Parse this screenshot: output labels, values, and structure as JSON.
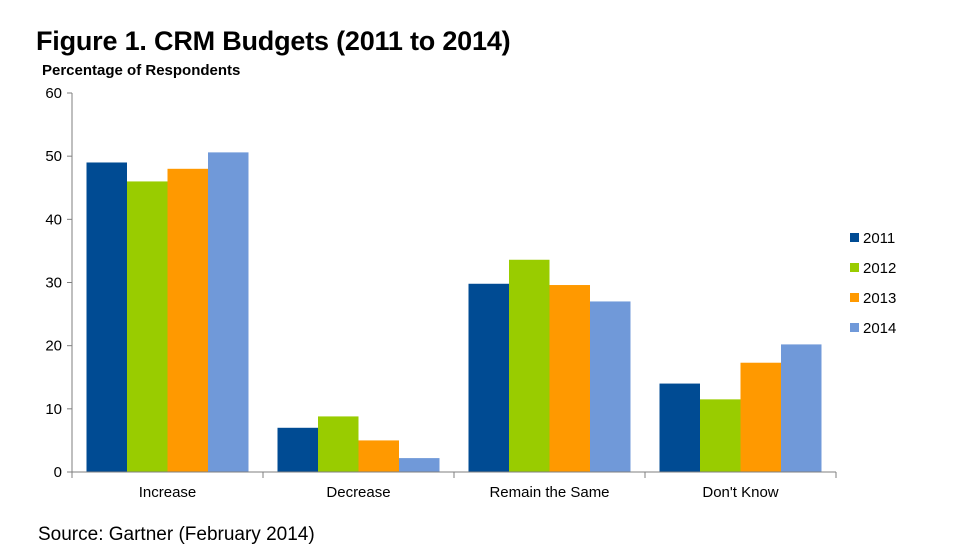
{
  "figure": {
    "title": "Figure 1. CRM Budgets (2011 to 2014)",
    "source": "Source: Gartner (February 2014)"
  },
  "chart_data": {
    "type": "bar",
    "title": "Figure 1. CRM Budgets (2011 to 2014)",
    "ylabel": "Percentage of Respondents",
    "xlabel": "",
    "ylim": [
      0,
      60
    ],
    "yticks": [
      0,
      10,
      20,
      30,
      40,
      50,
      60
    ],
    "grid": false,
    "legend_position": "right",
    "categories": [
      "Increase",
      "Decrease",
      "Remain the Same",
      "Don't Know"
    ],
    "series": [
      {
        "name": "2011",
        "color": "#004B93",
        "values": [
          49,
          7,
          29.8,
          14
        ]
      },
      {
        "name": "2012",
        "color": "#99CC00",
        "values": [
          46,
          8.8,
          33.6,
          11.5
        ]
      },
      {
        "name": "2013",
        "color": "#FF9900",
        "values": [
          48,
          5,
          29.6,
          17.3
        ]
      },
      {
        "name": "2014",
        "color": "#7099D9",
        "values": [
          50.6,
          2.2,
          27,
          20.2
        ]
      }
    ]
  }
}
